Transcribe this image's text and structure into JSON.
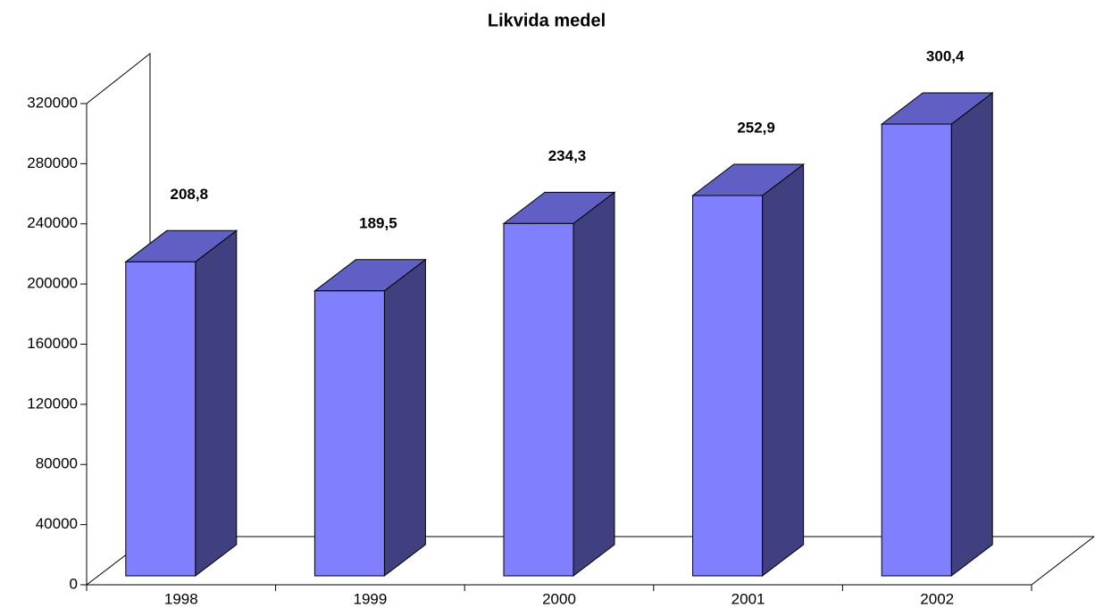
{
  "chart_data": {
    "type": "bar3d",
    "title": "Likvida medel",
    "categories": [
      "1998",
      "1999",
      "2000",
      "2001",
      "2002"
    ],
    "values": [
      208800,
      189500,
      234300,
      252900,
      300400
    ],
    "value_labels": [
      "208,8",
      "189,5",
      "234,3",
      "252,9",
      "300,4"
    ],
    "colors": {
      "front": "#8080ff",
      "top": "#6060c4",
      "side": "#404080"
    },
    "ylim": [
      0,
      320000
    ],
    "yticks": [
      0,
      40000,
      80000,
      120000,
      160000,
      200000,
      240000,
      280000,
      320000
    ]
  }
}
